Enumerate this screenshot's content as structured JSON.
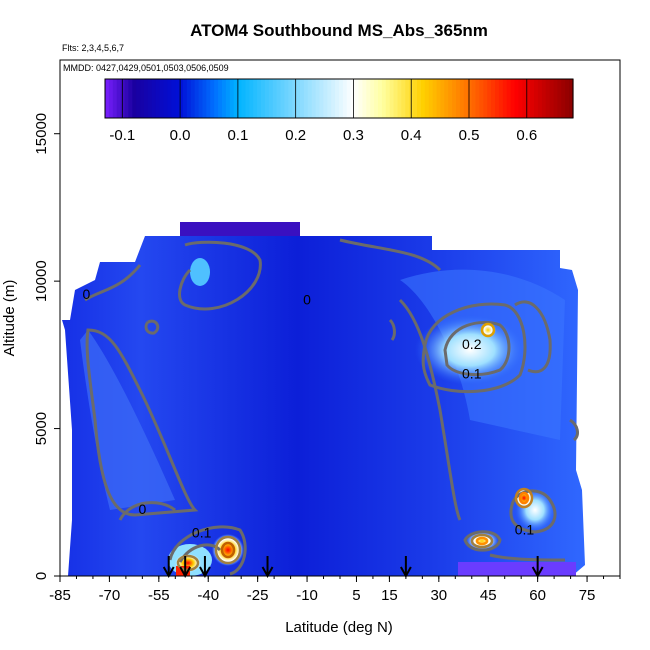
{
  "chart_data": {
    "type": "heatmap",
    "title": "ATOM4 Southbound MS_Abs_365nm",
    "flights_note": "Flts: 2,3,4,5,6,7",
    "dates_note": "MMDD: 0427,0429,0501,0503,0506,0509",
    "xlabel": "Latitude (deg N)",
    "ylabel": "Altitude (m)",
    "xlim": [
      -85,
      85
    ],
    "ylim": [
      0,
      17500
    ],
    "x_ticks": [
      -85,
      -70,
      -55,
      -40,
      -25,
      -10,
      5,
      15,
      30,
      45,
      60,
      75
    ],
    "y_ticks": [
      0,
      5000,
      10000,
      15000
    ],
    "colorbar": {
      "range": [
        -0.13,
        0.68
      ],
      "ticks": [
        "-0.1",
        "0.0",
        "0.1",
        "0.2",
        "0.3",
        "0.4",
        "0.5",
        "0.6"
      ],
      "tick_values": [
        -0.1,
        0.0,
        0.1,
        0.2,
        0.3,
        0.4,
        0.5,
        0.6
      ],
      "stops": [
        {
          "v": -0.13,
          "color": "#7a1fff"
        },
        {
          "v": -0.08,
          "color": "#1a00a0"
        },
        {
          "v": 0.0,
          "color": "#0010d8"
        },
        {
          "v": 0.06,
          "color": "#0070ff"
        },
        {
          "v": 0.1,
          "color": "#00b4ff"
        },
        {
          "v": 0.2,
          "color": "#7fd8ff"
        },
        {
          "v": 0.3,
          "color": "#ffffff"
        },
        {
          "v": 0.35,
          "color": "#ffffa0"
        },
        {
          "v": 0.42,
          "color": "#ffd000"
        },
        {
          "v": 0.5,
          "color": "#ff7000"
        },
        {
          "v": 0.58,
          "color": "#ff0000"
        },
        {
          "v": 0.68,
          "color": "#8a0000"
        }
      ]
    },
    "contour_labels": [
      {
        "label": "0",
        "lat": -77,
        "alt": 9400
      },
      {
        "label": "0",
        "lat": -10,
        "alt": 9200
      },
      {
        "label": "0",
        "lat": -60,
        "alt": 2100
      },
      {
        "label": "0.1",
        "lat": 40,
        "alt": 6700
      },
      {
        "label": "0.2",
        "lat": 40,
        "alt": 7700
      },
      {
        "label": "0.1",
        "lat": -42,
        "alt": 1300
      },
      {
        "label": "0.1",
        "lat": 56,
        "alt": 1400
      }
    ],
    "flight_profile_arrows_lat": [
      -52,
      -47,
      -41,
      -22,
      20,
      60
    ],
    "field_description_values": [
      {
        "region": "background",
        "value": 0.02
      },
      {
        "region": "south-pacific-band",
        "lat": -62,
        "alt": 5000,
        "value": 0.04
      },
      {
        "region": "north-upper-plume",
        "lat": 45,
        "alt": 8500,
        "value": 0.25
      },
      {
        "region": "north-lower-plume",
        "lat": 57,
        "alt": 2500,
        "value": 0.45
      },
      {
        "region": "south-boundary-layer",
        "lat": -40,
        "alt": 500,
        "value": 0.62
      },
      {
        "region": "north-boundary-layer",
        "lat": 42,
        "alt": 1000,
        "value": 0.45
      }
    ]
  }
}
